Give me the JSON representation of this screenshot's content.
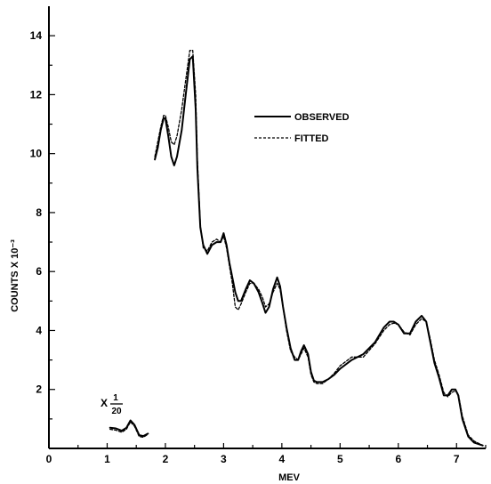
{
  "chart_data": {
    "type": "line",
    "xlabel": "MEV",
    "ylabel": "COUNTS X 10⁻³",
    "xlim": [
      0,
      7.5
    ],
    "ylim": [
      0,
      15
    ],
    "xticks": [
      "0",
      "1",
      "2",
      "3",
      "4",
      "5",
      "6",
      "7"
    ],
    "yticks": [
      "2",
      "4",
      "6",
      "8",
      "10",
      "12",
      "14"
    ],
    "legend_position": "top-right",
    "inset_label": {
      "prefix": "X",
      "numerator": "1",
      "denominator": "20"
    },
    "series": [
      {
        "name": "OBSERVED",
        "style": "solid",
        "segments": [
          {
            "x": [
              1.05,
              1.15,
              1.25,
              1.33,
              1.4,
              1.47,
              1.55,
              1.62,
              1.7
            ],
            "y": [
              0.7,
              0.68,
              0.6,
              0.7,
              0.95,
              0.8,
              0.45,
              0.42,
              0.5
            ]
          },
          {
            "x": [
              1.82,
              1.87,
              1.92,
              1.97,
              2.0,
              2.05,
              2.1,
              2.15,
              2.2,
              2.28,
              2.35,
              2.42,
              2.47,
              2.52,
              2.55,
              2.6,
              2.65,
              2.72,
              2.8,
              2.88,
              2.95,
              3.0,
              3.05,
              3.1,
              3.15,
              3.2,
              3.25,
              3.3,
              3.38,
              3.45,
              3.52,
              3.6,
              3.67,
              3.72,
              3.78,
              3.85,
              3.92,
              3.97,
              4.02,
              4.08,
              4.15,
              4.22,
              4.28,
              4.33,
              4.38,
              4.45,
              4.5,
              4.55,
              4.6,
              4.7,
              4.8,
              4.9,
              5.0,
              5.2,
              5.4,
              5.6,
              5.75,
              5.85,
              5.92,
              6.0,
              6.1,
              6.2,
              6.3,
              6.4,
              6.48,
              6.55,
              6.62,
              6.7,
              6.78,
              6.85,
              6.92,
              6.98,
              7.03,
              7.1,
              7.2,
              7.3,
              7.45
            ],
            "y": [
              9.8,
              10.2,
              10.8,
              11.2,
              11.2,
              10.6,
              9.9,
              9.6,
              9.9,
              10.8,
              12.0,
              13.2,
              13.3,
              11.5,
              9.5,
              7.5,
              6.9,
              6.6,
              6.9,
              7.0,
              7.0,
              7.3,
              6.9,
              6.3,
              5.8,
              5.3,
              5.0,
              5.0,
              5.4,
              5.7,
              5.6,
              5.3,
              4.9,
              4.6,
              4.8,
              5.4,
              5.8,
              5.5,
              4.8,
              4.1,
              3.4,
              3.0,
              3.0,
              3.3,
              3.5,
              3.2,
              2.6,
              2.3,
              2.25,
              2.25,
              2.35,
              2.5,
              2.7,
              3.0,
              3.2,
              3.6,
              4.1,
              4.3,
              4.3,
              4.2,
              3.9,
              3.9,
              4.3,
              4.5,
              4.3,
              3.6,
              2.9,
              2.4,
              1.8,
              1.8,
              2.0,
              2.0,
              1.8,
              1.0,
              0.4,
              0.2,
              0.1
            ]
          }
        ]
      },
      {
        "name": "FITTED",
        "style": "dashed",
        "segments": [
          {
            "x": [
              1.05,
              1.15,
              1.25,
              1.33,
              1.4,
              1.47,
              1.55,
              1.62,
              1.7
            ],
            "y": [
              0.65,
              0.62,
              0.55,
              0.65,
              0.9,
              0.75,
              0.4,
              0.38,
              0.48
            ]
          },
          {
            "x": [
              1.82,
              1.87,
              1.92,
              1.97,
              2.0,
              2.05,
              2.1,
              2.15,
              2.2,
              2.28,
              2.35,
              2.42,
              2.47,
              2.52,
              2.55,
              2.6,
              2.65,
              2.72,
              2.8,
              2.88,
              2.95,
              3.0,
              3.05,
              3.1,
              3.15,
              3.2,
              3.25,
              3.3,
              3.38,
              3.45,
              3.52,
              3.6,
              3.67,
              3.72,
              3.78,
              3.85,
              3.92,
              3.97,
              4.02,
              4.08,
              4.15,
              4.22,
              4.28,
              4.33,
              4.38,
              4.45,
              4.5,
              4.55,
              4.6,
              4.7,
              4.8,
              4.9,
              5.0,
              5.2,
              5.4,
              5.6,
              5.75,
              5.85,
              5.92,
              6.0,
              6.1,
              6.2,
              6.3,
              6.4,
              6.48,
              6.55,
              6.62,
              6.7,
              6.78,
              6.85,
              6.92,
              6.98,
              7.03,
              7.1,
              7.2,
              7.3,
              7.45
            ],
            "y": [
              9.9,
              10.4,
              10.9,
              11.3,
              11.3,
              10.9,
              10.4,
              10.3,
              10.6,
              11.5,
              12.5,
              13.5,
              13.5,
              12.0,
              9.8,
              7.6,
              6.8,
              6.7,
              7.0,
              7.1,
              7.0,
              7.2,
              6.8,
              6.2,
              5.6,
              4.8,
              4.7,
              4.9,
              5.3,
              5.6,
              5.6,
              5.4,
              5.1,
              4.8,
              4.9,
              5.3,
              5.6,
              5.4,
              4.8,
              4.0,
              3.3,
              3.1,
              3.0,
              3.2,
              3.4,
              3.1,
              2.5,
              2.25,
              2.2,
              2.2,
              2.35,
              2.55,
              2.8,
              3.1,
              3.1,
              3.55,
              4.0,
              4.2,
              4.25,
              4.2,
              3.95,
              3.85,
              4.2,
              4.4,
              4.3,
              3.7,
              3.0,
              2.5,
              1.9,
              1.75,
              1.9,
              1.95,
              1.85,
              1.1,
              0.45,
              0.25,
              0.1
            ]
          }
        ]
      }
    ]
  }
}
